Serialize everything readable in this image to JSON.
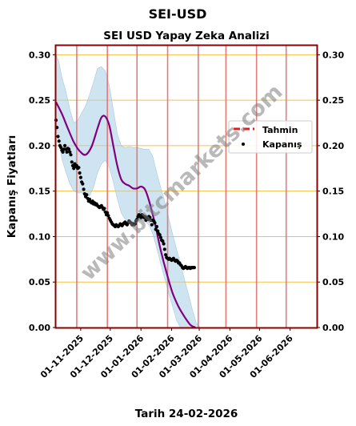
{
  "suptitle": "SEI-USD",
  "watermark": "www.bitcmarkets.com",
  "chart_data": {
    "type": "line",
    "title": "SEI USD Yapay Zeka Analizi",
    "xlabel": "Tarih 24-02-2026",
    "ylabel": "Kapanış Fiyatları",
    "xlim": [
      "2025-10-07",
      "2026-06-28"
    ],
    "ylim": [
      0,
      0.31
    ],
    "yticks": [
      0.0,
      0.05,
      0.1,
      0.15,
      0.2,
      0.25,
      0.3
    ],
    "ytick_labels": [
      "0.00",
      "0.05",
      "0.10",
      "0.15",
      "0.20",
      "0.25",
      "0.30"
    ],
    "xticks": [
      "2025-11-01",
      "2025-12-01",
      "2026-01-01",
      "2026-02-01",
      "2026-03-01",
      "2026-04-01",
      "2026-05-01",
      "2026-06-01"
    ],
    "xtick_labels": [
      "01-11-2025",
      "01-12-2025",
      "01-01-2026",
      "01-02-2026",
      "01-03-2026",
      "01-04-2026",
      "01-05-2026",
      "01-06-2026"
    ],
    "vertical_lines": [
      "2025-10-28",
      "2025-11-28",
      "2025-12-28",
      "2026-01-28",
      "2026-02-28",
      "2026-03-28",
      "2026-04-28",
      "2026-05-28"
    ],
    "grid": "horizontal",
    "legend": {
      "position": "right",
      "entries": [
        "Tahmin",
        "Kapanış"
      ]
    },
    "colors": {
      "forecast": "#800080",
      "band": "#a8cde6",
      "closing": "#000000",
      "legend_forecast": "#e41a1c",
      "vline": "#e36d6d",
      "hgrid": "#f5c242",
      "frame": "#8b0000"
    },
    "series": [
      {
        "name": "Kapanış",
        "style": "scatter",
        "x": [
          "2025-10-07",
          "2025-10-08",
          "2025-10-09",
          "2025-10-10",
          "2025-10-11",
          "2025-10-12",
          "2025-10-13",
          "2025-10-14",
          "2025-10-15",
          "2025-10-16",
          "2025-10-17",
          "2025-10-18",
          "2025-10-19",
          "2025-10-20",
          "2025-10-21",
          "2025-10-22",
          "2025-10-23",
          "2025-10-24",
          "2025-10-25",
          "2025-10-26",
          "2025-10-27",
          "2025-10-28",
          "2025-10-29",
          "2025-10-30",
          "2025-10-31",
          "2025-11-01",
          "2025-11-02",
          "2025-11-03",
          "2025-11-04",
          "2025-11-05",
          "2025-11-06",
          "2025-11-07",
          "2025-11-08",
          "2025-11-09",
          "2025-11-10",
          "2025-11-11",
          "2025-11-12",
          "2025-11-13",
          "2025-11-14",
          "2025-11-15",
          "2025-11-16",
          "2025-11-17",
          "2025-11-18",
          "2025-11-19",
          "2025-11-20",
          "2025-11-21",
          "2025-11-22",
          "2025-11-23",
          "2025-11-24",
          "2025-11-25",
          "2025-11-26",
          "2025-11-27",
          "2025-11-28",
          "2025-11-29",
          "2025-11-30",
          "2025-12-01",
          "2025-12-02",
          "2025-12-03",
          "2025-12-04",
          "2025-12-05",
          "2025-12-06",
          "2025-12-07",
          "2025-12-08",
          "2025-12-09",
          "2025-12-10",
          "2025-12-11",
          "2025-12-12",
          "2025-12-13",
          "2025-12-14",
          "2025-12-15",
          "2025-12-16",
          "2025-12-17",
          "2025-12-18",
          "2025-12-19",
          "2025-12-20",
          "2025-12-21",
          "2025-12-22",
          "2025-12-23",
          "2025-12-24",
          "2025-12-25",
          "2025-12-26",
          "2025-12-27",
          "2025-12-28",
          "2025-12-29",
          "2025-12-30",
          "2025-12-31",
          "2026-01-01",
          "2026-01-02",
          "2026-01-03",
          "2026-01-04",
          "2026-01-05",
          "2026-01-06",
          "2026-01-07",
          "2026-01-08",
          "2026-01-09",
          "2026-01-10",
          "2026-01-11",
          "2026-01-12",
          "2026-01-13",
          "2026-01-14",
          "2026-01-15",
          "2026-01-16",
          "2026-01-17",
          "2026-01-18",
          "2026-01-19",
          "2026-01-20",
          "2026-01-21",
          "2026-01-22",
          "2026-01-23",
          "2026-01-24",
          "2026-01-25",
          "2026-01-26",
          "2026-01-27",
          "2026-01-28",
          "2026-01-29",
          "2026-01-30",
          "2026-01-31",
          "2026-02-01",
          "2026-02-02",
          "2026-02-03",
          "2026-02-04",
          "2026-02-05",
          "2026-02-06",
          "2026-02-07",
          "2026-02-08",
          "2026-02-09",
          "2026-02-10",
          "2026-02-11",
          "2026-02-12",
          "2026-02-13",
          "2026-02-14",
          "2026-02-15",
          "2026-02-16",
          "2026-02-17",
          "2026-02-18",
          "2026-02-19",
          "2026-02-20",
          "2026-02-21",
          "2026-02-22",
          "2026-02-23",
          "2026-02-24"
        ],
        "values": [
          0.228,
          0.22,
          0.21,
          0.205,
          0.2,
          0.198,
          0.195,
          0.193,
          0.196,
          0.2,
          0.196,
          0.193,
          0.197,
          0.196,
          0.193,
          0.19,
          0.182,
          0.178,
          0.175,
          0.18,
          0.177,
          0.178,
          0.175,
          0.176,
          0.17,
          0.165,
          0.16,
          0.158,
          0.152,
          0.147,
          0.144,
          0.146,
          0.142,
          0.139,
          0.141,
          0.138,
          0.137,
          0.139,
          0.136,
          0.137,
          0.135,
          0.136,
          0.134,
          0.133,
          0.132,
          0.133,
          0.134,
          0.132,
          0.13,
          0.131,
          0.127,
          0.124,
          0.126,
          0.123,
          0.12,
          0.118,
          0.116,
          0.114,
          0.113,
          0.112,
          0.111,
          0.113,
          0.112,
          0.111,
          0.112,
          0.114,
          0.113,
          0.112,
          0.114,
          0.115,
          0.116,
          0.114,
          0.113,
          0.115,
          0.117,
          0.116,
          0.115,
          0.113,
          0.114,
          0.113,
          0.114,
          0.117,
          0.119,
          0.122,
          0.124,
          0.123,
          0.121,
          0.124,
          0.123,
          0.121,
          0.122,
          0.118,
          0.121,
          0.119,
          0.122,
          0.121,
          0.118,
          0.113,
          0.118,
          0.117,
          0.115,
          0.108,
          0.111,
          0.106,
          0.103,
          0.102,
          0.099,
          0.096,
          0.095,
          0.092,
          0.086,
          0.08,
          0.077,
          0.076,
          0.075,
          0.076,
          0.075,
          0.074,
          0.075,
          0.076,
          0.074,
          0.073,
          0.074,
          0.073,
          0.071,
          0.071,
          0.069,
          0.068,
          0.066,
          0.065,
          0.066,
          0.067,
          0.066,
          0.065,
          0.066,
          0.066,
          0.065,
          0.066,
          0.066,
          0.066,
          0.066
        ]
      },
      {
        "name": "Tahmin",
        "style": "line",
        "x": [
          "2025-10-07",
          "2025-10-13",
          "2025-10-19",
          "2025-10-25",
          "2025-10-31",
          "2025-11-06",
          "2025-11-12",
          "2025-11-18",
          "2025-11-22",
          "2025-11-26",
          "2025-11-30",
          "2025-12-04",
          "2025-12-08",
          "2025-12-12",
          "2025-12-16",
          "2025-12-20",
          "2025-12-24",
          "2025-12-28",
          "2026-01-01",
          "2026-01-05",
          "2026-01-09",
          "2026-01-15",
          "2026-01-21",
          "2026-01-27",
          "2026-02-02",
          "2026-02-08",
          "2026-02-14",
          "2026-02-20",
          "2026-02-25"
        ],
        "values": [
          0.248,
          0.235,
          0.219,
          0.204,
          0.194,
          0.19,
          0.199,
          0.219,
          0.231,
          0.232,
          0.222,
          0.2,
          0.178,
          0.163,
          0.158,
          0.156,
          0.153,
          0.153,
          0.155,
          0.152,
          0.14,
          0.115,
          0.085,
          0.06,
          0.038,
          0.023,
          0.012,
          0.003,
          0.0
        ]
      }
    ],
    "confidence_band": {
      "x": [
        "2025-10-07",
        "2025-10-10",
        "2025-10-13",
        "2025-10-17",
        "2025-10-21",
        "2025-10-25",
        "2025-10-29",
        "2025-11-02",
        "2025-11-06",
        "2025-11-10",
        "2025-11-14",
        "2025-11-18",
        "2025-11-22",
        "2025-11-26",
        "2025-11-30",
        "2025-12-04",
        "2025-12-08",
        "2025-12-12",
        "2025-12-16",
        "2025-12-20",
        "2025-12-24",
        "2025-12-28",
        "2026-01-01",
        "2026-01-05",
        "2026-01-09",
        "2026-01-13",
        "2026-01-17",
        "2026-01-21",
        "2026-01-25",
        "2026-01-29",
        "2026-02-02",
        "2026-02-06",
        "2026-02-10",
        "2026-02-14",
        "2026-02-18",
        "2026-02-22",
        "2026-02-26",
        "2026-03-02"
      ],
      "upper": [
        0.3,
        0.292,
        0.275,
        0.26,
        0.24,
        0.225,
        0.228,
        0.236,
        0.244,
        0.256,
        0.27,
        0.285,
        0.287,
        0.282,
        0.266,
        0.24,
        0.213,
        0.2,
        0.198,
        0.199,
        0.198,
        0.198,
        0.197,
        0.196,
        0.196,
        0.188,
        0.17,
        0.154,
        0.139,
        0.121,
        0.103,
        0.086,
        0.07,
        0.053,
        0.037,
        0.02,
        0.005,
        0.0
      ],
      "lower": [
        0.224,
        0.204,
        0.185,
        0.171,
        0.158,
        0.15,
        0.148,
        0.148,
        0.146,
        0.145,
        0.154,
        0.17,
        0.18,
        0.184,
        0.176,
        0.16,
        0.142,
        0.126,
        0.119,
        0.117,
        0.116,
        0.117,
        0.118,
        0.117,
        0.113,
        0.103,
        0.087,
        0.07,
        0.054,
        0.038,
        0.023,
        0.008,
        0.0,
        0.0,
        0.0,
        0.0,
        0.0,
        0.0
      ]
    }
  }
}
